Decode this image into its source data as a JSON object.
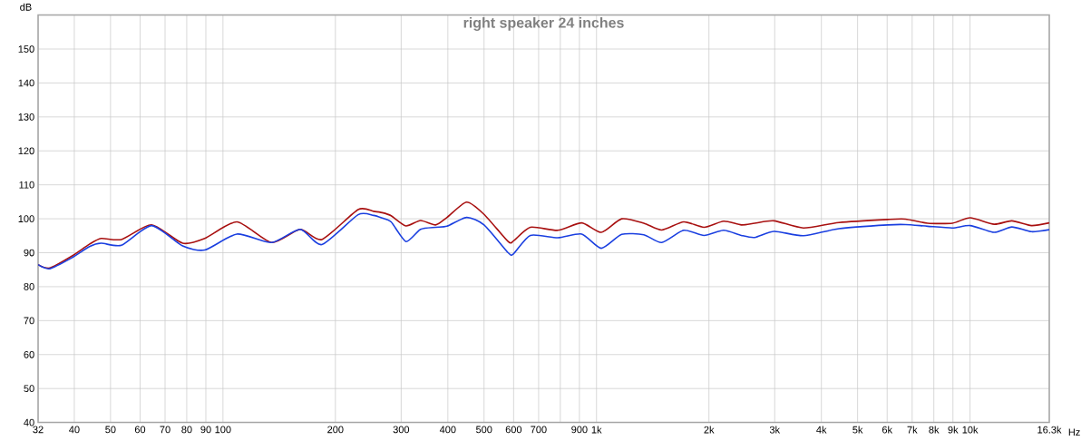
{
  "chart_data": {
    "type": "line",
    "title": "right speaker 24 inches",
    "xlabel": "Hz",
    "ylabel": "dB",
    "log": "x",
    "grid": true,
    "marker": "none",
    "line_style": "solid",
    "xlim": [
      32,
      16300
    ],
    "ylim": [
      40,
      160
    ],
    "xticks": [
      32,
      40,
      50,
      60,
      70,
      80,
      90,
      100,
      200,
      300,
      400,
      500,
      600,
      700,
      {
        "value": 800,
        "label": null
      },
      900,
      {
        "value": 1000,
        "label": "1k"
      },
      {
        "value": 2000,
        "label": "2k"
      },
      {
        "value": 3000,
        "label": "3k"
      },
      {
        "value": 4000,
        "label": "4k"
      },
      {
        "value": 5000,
        "label": "5k"
      },
      {
        "value": 6000,
        "label": "6k"
      },
      {
        "value": 7000,
        "label": "7k"
      },
      {
        "value": 8000,
        "label": "8k"
      },
      {
        "value": 9000,
        "label": "9k"
      },
      {
        "value": 10000,
        "label": "10k"
      },
      {
        "value": 16300,
        "label": "16.3k"
      }
    ],
    "yticks": [
      40,
      50,
      60,
      70,
      80,
      90,
      100,
      110,
      120,
      130,
      140,
      150,
      {
        "value": 160,
        "label": null
      }
    ],
    "x": [
      32,
      34.4,
      39.4,
      43.9,
      47.2,
      53.5,
      64.4,
      78,
      89.4,
      109,
      135,
      161,
      184,
      230,
      253,
      267,
      282,
      309,
      338,
      371,
      398,
      449,
      500,
      580,
      600,
      665,
      788,
      913,
      1030,
      1168,
      1339,
      1494,
      1712,
      1941,
      2190,
      2442,
      2651,
      2990,
      3581,
      4457,
      6022,
      6717,
      7700,
      8972,
      10010,
      11600,
      12940,
      14600,
      16300
    ],
    "series": [
      {
        "color": "#a81010",
        "values": [
          86.5,
          85.5,
          89,
          92.5,
          94.2,
          93.9,
          98.2,
          92.8,
          94.2,
          99.1,
          93,
          96.9,
          93.9,
          102.7,
          102.2,
          101.8,
          100.9,
          97.9,
          99.5,
          98.2,
          100.4,
          104.9,
          101.3,
          93.3,
          93.5,
          97.5,
          96.6,
          98.8,
          96,
          100,
          98.7,
          96.7,
          99.1,
          97.5,
          99.3,
          98.2,
          98.7,
          99.4,
          97.3,
          98.9,
          99.8,
          99.9,
          98.7,
          98.7,
          100.3,
          98.4,
          99.4,
          98,
          98.8
        ]
      },
      {
        "color": "#1a3fe0",
        "values": [
          86.5,
          85.3,
          88.5,
          91.8,
          92.8,
          92.2,
          98,
          92,
          90.8,
          95.5,
          93,
          96.9,
          92.4,
          101.2,
          101,
          100.2,
          99.1,
          93.3,
          96.9,
          97.5,
          97.8,
          100.4,
          98.2,
          90,
          89.7,
          95.1,
          94.4,
          95.5,
          91.3,
          95.4,
          95.3,
          93,
          96.6,
          95.1,
          96.6,
          95.1,
          94.5,
          96.3,
          95,
          97.1,
          98.2,
          98.3,
          97.8,
          97.3,
          98,
          96,
          97.6,
          96.2,
          96.8
        ]
      }
    ]
  }
}
